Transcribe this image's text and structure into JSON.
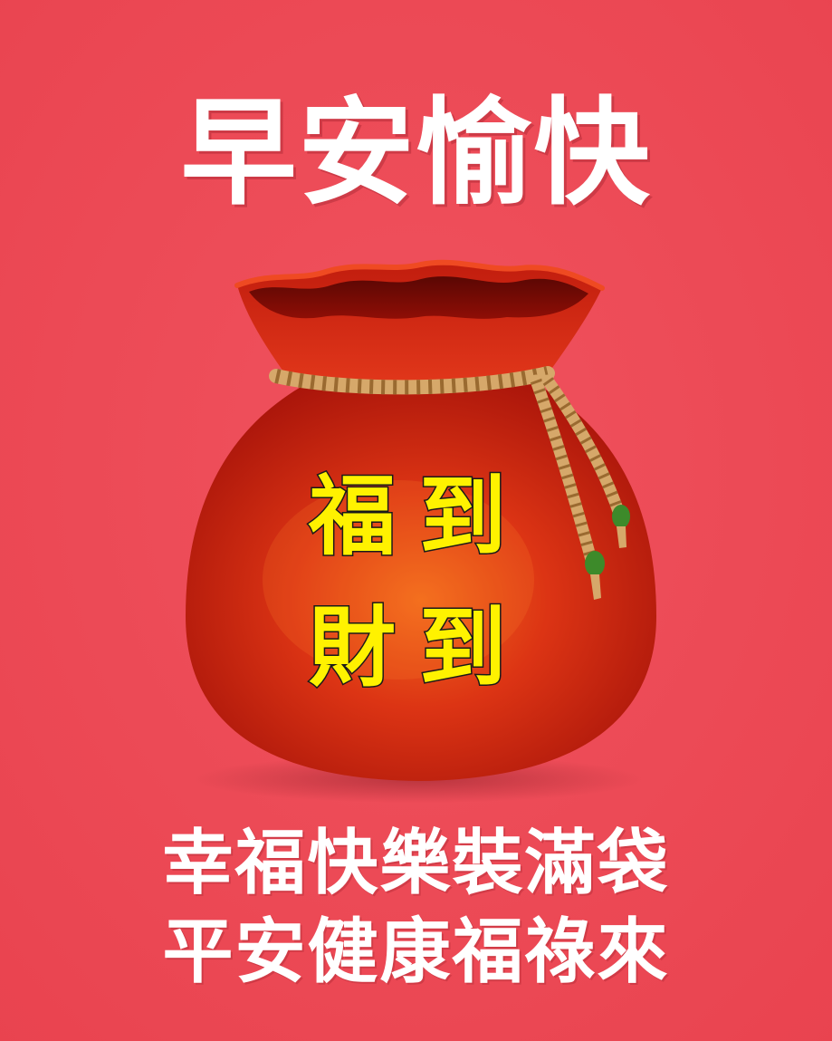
{
  "colors": {
    "background": "#ee4b58",
    "bag_body": "#d42a12",
    "bag_dark": "#8f0e06",
    "rope": "#d6a86a",
    "tassel_tip": "#3d8a2a",
    "bag_text_fill": "#fff200",
    "bag_text_outline": "#1a1a1a",
    "text_white": "#ffffff"
  },
  "headline": "早安愉快",
  "bag": {
    "line1": "福到",
    "line2": "財到",
    "icon": "lucky-money-bag-icon"
  },
  "blessings": [
    "幸福快樂裝滿袋",
    "平安健康福祿來"
  ]
}
